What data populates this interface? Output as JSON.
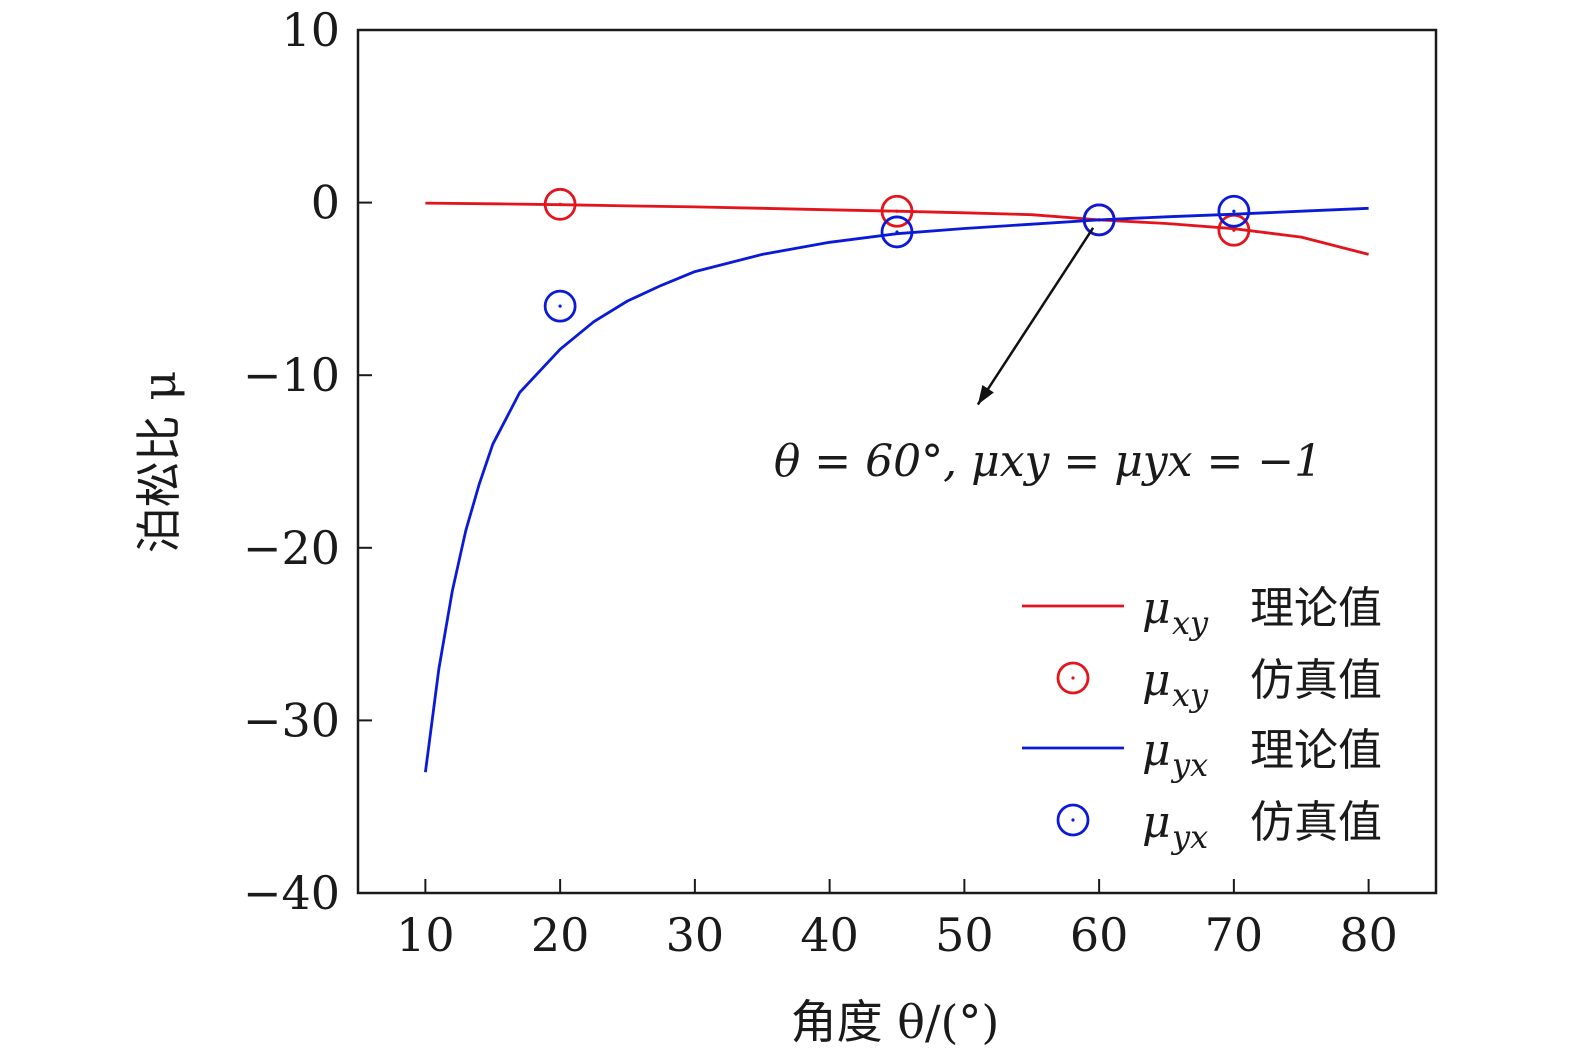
{
  "chart_data": {
    "type": "line",
    "xlabel": "角度 θ/(°)",
    "ylabel": "泊松比 μ",
    "xlim": [
      5,
      85
    ],
    "ylim": [
      -40,
      10
    ],
    "xticks": [
      10,
      20,
      30,
      40,
      50,
      60,
      70,
      80
    ],
    "yticks": [
      10,
      0,
      -10,
      -20,
      -30,
      -40
    ],
    "ytick_labels": [
      "10",
      "0",
      "−10",
      "−20",
      "−30",
      "−40"
    ],
    "grid": false,
    "legend_position": "bottom-right",
    "series": [
      {
        "name": "μxy 理论值",
        "kind": "line",
        "color": "#e3141b",
        "x": [
          10,
          15,
          20,
          25,
          30,
          35,
          40,
          45,
          50,
          55,
          60,
          65,
          70,
          75,
          80
        ],
        "y": [
          -0.03,
          -0.07,
          -0.12,
          -0.19,
          -0.25,
          -0.33,
          -0.42,
          -0.5,
          -0.59,
          -0.7,
          -1.0,
          -1.21,
          -1.51,
          -2.0,
          -3.0
        ]
      },
      {
        "name": "μxy 仿真值",
        "kind": "marker",
        "color": "#e3141b",
        "x": [
          20,
          45,
          60,
          70
        ],
        "y": [
          -0.1,
          -0.5,
          -1.0,
          -1.6
        ]
      },
      {
        "name": "μyx 理论值",
        "kind": "line",
        "color": "#0a1ad6",
        "x": [
          10,
          11,
          12,
          13,
          14,
          15,
          17,
          20,
          22.5,
          25,
          27.5,
          30,
          35,
          40,
          45,
          50,
          55,
          60,
          65,
          70,
          75,
          80
        ],
        "y": [
          -33.0,
          -27.0,
          -22.5,
          -19.0,
          -16.3,
          -14.0,
          -11.0,
          -8.5,
          -6.9,
          -5.7,
          -4.8,
          -4.0,
          -3.0,
          -2.3,
          -1.8,
          -1.5,
          -1.25,
          -1.0,
          -0.82,
          -0.67,
          -0.5,
          -0.33
        ]
      },
      {
        "name": "μyx 仿真值",
        "kind": "marker",
        "color": "#0a1ad6",
        "x": [
          20,
          45,
          60,
          70
        ],
        "y": [
          -6.0,
          -1.7,
          -1.0,
          -0.5
        ]
      }
    ],
    "annotation": {
      "text": "θ = 60°, μxy = μyx = −1",
      "arrow_from": [
        60,
        -1.0
      ],
      "arrow_to": [
        51,
        -11.7
      ]
    },
    "legend": [
      {
        "symbol": "μ",
        "sub": "xy",
        "label": "理论值",
        "kind": "line",
        "color": "#e3141b"
      },
      {
        "symbol": "μ",
        "sub": "xy",
        "label": "仿真值",
        "kind": "marker",
        "color": "#e3141b"
      },
      {
        "symbol": "μ",
        "sub": "yx",
        "label": "理论值",
        "kind": "line",
        "color": "#0a1ad6"
      },
      {
        "symbol": "μ",
        "sub": "yx",
        "label": "仿真值",
        "kind": "marker",
        "color": "#0a1ad6"
      }
    ]
  }
}
